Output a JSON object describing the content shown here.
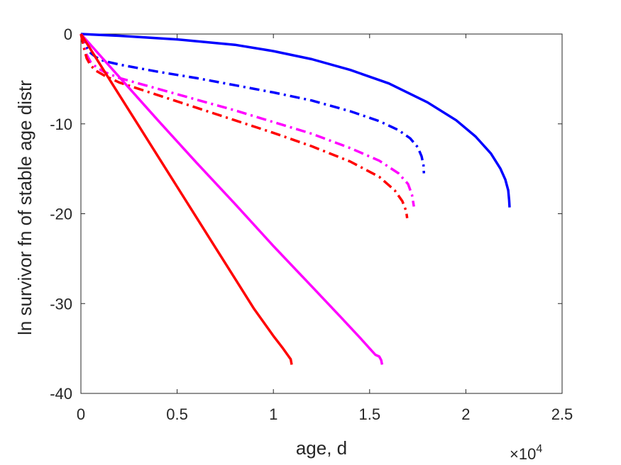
{
  "chart_data": {
    "type": "line",
    "title": "",
    "xlabel": "age, d",
    "ylabel": "ln survivor fn of stable age distr",
    "x_exponent_label": "×10",
    "x_exponent_power": "4",
    "xlim": [
      0,
      25000
    ],
    "ylim": [
      -40,
      0
    ],
    "xticks": [
      0,
      5000,
      10000,
      15000,
      20000,
      25000
    ],
    "xtick_labels": [
      "0",
      "0.5",
      "1",
      "1.5",
      "2",
      "2.5"
    ],
    "yticks": [
      0,
      -10,
      -20,
      -30,
      -40
    ],
    "ytick_labels": [
      "0",
      "-10",
      "-20",
      "-30",
      "-40"
    ],
    "grid": false,
    "legend": "none",
    "series": [
      {
        "color": "#0000ff",
        "style": "solid",
        "x": [
          0,
          2000,
          5000,
          8000,
          10000,
          12000,
          14000,
          16000,
          18000,
          19500,
          20500,
          21300,
          21800,
          22050,
          22200,
          22250,
          22270
        ],
        "y": [
          0,
          -0.2,
          -0.6,
          -1.2,
          -1.9,
          -2.8,
          -4.0,
          -5.5,
          -7.6,
          -9.6,
          -11.4,
          -13.3,
          -15.0,
          -16.2,
          -17.4,
          -18.5,
          -19.3
        ]
      },
      {
        "color": "#0000ff",
        "style": "dashdot",
        "x": [
          0,
          150,
          300,
          500,
          800,
          1200,
          2000,
          4000,
          6000,
          8000,
          10000,
          12000,
          14000,
          15500,
          16500,
          17100,
          17500,
          17700,
          17800,
          17820
        ],
        "y": [
          0,
          -0.8,
          -1.5,
          -2.1,
          -2.6,
          -3.0,
          -3.4,
          -4.2,
          -4.9,
          -5.7,
          -6.5,
          -7.4,
          -8.6,
          -9.7,
          -10.7,
          -11.6,
          -12.6,
          -13.6,
          -14.6,
          -15.5
        ]
      },
      {
        "color": "#ff00ff",
        "style": "dashdot",
        "x": [
          0,
          150,
          300,
          500,
          800,
          1200,
          2000,
          4000,
          6000,
          8000,
          10000,
          12000,
          14000,
          15500,
          16500,
          17000,
          17200,
          17300
        ],
        "y": [
          0,
          -1.2,
          -2.3,
          -3.1,
          -3.7,
          -4.2,
          -4.9,
          -6.1,
          -7.3,
          -8.5,
          -9.8,
          -11.1,
          -12.7,
          -14.1,
          -15.5,
          -16.7,
          -17.9,
          -19.2
        ]
      },
      {
        "color": "#ff0000",
        "style": "dashdot",
        "x": [
          0,
          150,
          300,
          500,
          800,
          1200,
          2000,
          4000,
          6000,
          8000,
          10000,
          12000,
          14000,
          15500,
          16300,
          16700,
          16900,
          16950
        ],
        "y": [
          0,
          -1.5,
          -2.7,
          -3.5,
          -4.1,
          -4.6,
          -5.4,
          -6.8,
          -8.2,
          -9.6,
          -11.0,
          -12.5,
          -14.2,
          -15.9,
          -17.4,
          -18.6,
          -19.7,
          -20.5
        ]
      },
      {
        "color": "#ff00ff",
        "style": "solid",
        "x": [
          0,
          500,
          1000,
          2000,
          3000,
          4000,
          6000,
          8000,
          10000,
          12000,
          13500,
          14500,
          15000,
          15300,
          15500,
          15600,
          15650
        ],
        "y": [
          0,
          -1.2,
          -2.4,
          -4.8,
          -7.2,
          -9.6,
          -14.3,
          -18.9,
          -23.6,
          -28.1,
          -31.5,
          -33.8,
          -35.0,
          -35.7,
          -35.9,
          -36.3,
          -36.8
        ]
      },
      {
        "color": "#ff0000",
        "style": "solid",
        "x": [
          0,
          500,
          1000,
          2000,
          3000,
          4000,
          5000,
          6000,
          7000,
          8000,
          9000,
          10000,
          10500,
          10800,
          10900,
          10950
        ],
        "y": [
          0,
          -1.7,
          -3.4,
          -6.8,
          -10.2,
          -13.6,
          -17.0,
          -20.4,
          -23.8,
          -27.2,
          -30.6,
          -33.6,
          -35.0,
          -35.9,
          -36.2,
          -36.8
        ]
      }
    ]
  }
}
